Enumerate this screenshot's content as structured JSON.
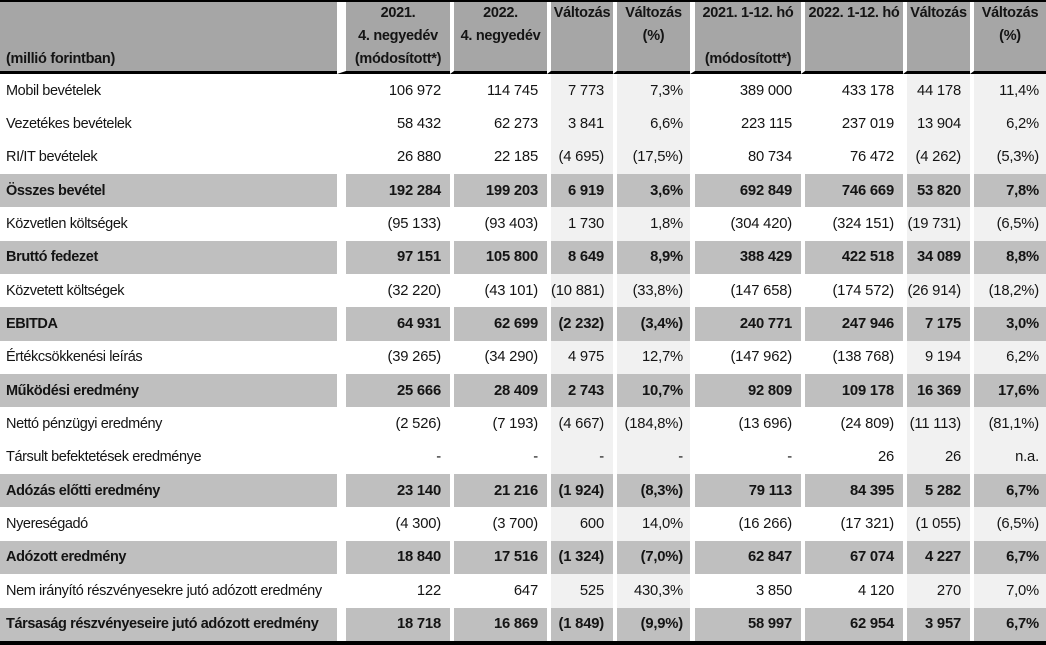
{
  "title": "Eredménykimutatás táblázat",
  "unit_label": "(millió forintban)",
  "header": {
    "columns": [
      {
        "id": "label",
        "lines": [
          "",
          "",
          "(millió forintban)"
        ]
      },
      {
        "id": "q4-2021",
        "lines": [
          "2021.",
          "4. negyedév",
          "(módosított*)"
        ]
      },
      {
        "id": "q4-2022",
        "lines": [
          "2022.",
          "4. negyedév",
          ""
        ]
      },
      {
        "id": "change-q",
        "lines": [
          "Változás",
          "",
          ""
        ]
      },
      {
        "id": "change-q-pct",
        "lines": [
          "Változás",
          "(%)",
          ""
        ]
      },
      {
        "id": "fy-2021",
        "lines": [
          "2021. 1-12. hó",
          "",
          "(módosított*)"
        ]
      },
      {
        "id": "fy-2022",
        "lines": [
          "2022. 1-12. hó",
          "",
          ""
        ]
      },
      {
        "id": "change-fy",
        "lines": [
          "Változás",
          "",
          ""
        ]
      },
      {
        "id": "change-fy-pct",
        "lines": [
          "Változás",
          "(%)",
          ""
        ]
      }
    ]
  },
  "rows": [
    {
      "type": "blank"
    },
    {
      "type": "data",
      "label": "Mobil bevételek",
      "values": [
        "106 972",
        "114 745",
        "7 773",
        "7,3%",
        "389 000",
        "433 178",
        "44 178",
        "11,4%"
      ]
    },
    {
      "type": "data",
      "label": "Vezetékes bevételek",
      "values": [
        "58 432",
        "62 273",
        "3 841",
        "6,6%",
        "223 115",
        "237 019",
        "13 904",
        "6,2%"
      ]
    },
    {
      "type": "data",
      "label": "RI/IT bevételek",
      "values": [
        "26 880",
        "22 185",
        "(4 695)",
        "(17,5%)",
        "80 734",
        "76 472",
        "(4 262)",
        "(5,3%)"
      ]
    },
    {
      "type": "subtotal",
      "label": "Összes bevétel",
      "values": [
        "192 284",
        "199 203",
        "6 919",
        "3,6%",
        "692 849",
        "746 669",
        "53 820",
        "7,8%"
      ]
    },
    {
      "type": "blank"
    },
    {
      "type": "data",
      "label": "Közvetlen költségek",
      "values": [
        "(95 133)",
        "(93 403)",
        "1 730",
        "1,8%",
        "(304 420)",
        "(324 151)",
        "(19 731)",
        "(6,5%)"
      ]
    },
    {
      "type": "subtotal",
      "label": "Bruttó fedezet",
      "values": [
        "97 151",
        "105 800",
        "8 649",
        "8,9%",
        "388 429",
        "422 518",
        "34 089",
        "8,8%"
      ]
    },
    {
      "type": "blank"
    },
    {
      "type": "data",
      "label": "Közvetett költségek",
      "values": [
        "(32 220)",
        "(43 101)",
        "(10 881)",
        "(33,8%)",
        "(147 658)",
        "(174 572)",
        "(26 914)",
        "(18,2%)"
      ]
    },
    {
      "type": "subtotal",
      "label": "EBITDA",
      "values": [
        "64 931",
        "62 699",
        "(2 232)",
        "(3,4%)",
        "240 771",
        "247 946",
        "7 175",
        "3,0%"
      ]
    },
    {
      "type": "blank"
    },
    {
      "type": "data",
      "label": "Értékcsökkenési leírás",
      "values": [
        "(39 265)",
        "(34 290)",
        "4 975",
        "12,7%",
        "(147 962)",
        "(138 768)",
        "9 194",
        "6,2%"
      ]
    },
    {
      "type": "subtotal",
      "label": "Működési eredmény",
      "values": [
        "25 666",
        "28 409",
        "2 743",
        "10,7%",
        "92 809",
        "109 178",
        "16 369",
        "17,6%"
      ]
    },
    {
      "type": "blank"
    },
    {
      "type": "data",
      "label": "Nettó pénzügyi eredmény",
      "values": [
        "(2 526)",
        "(7 193)",
        "(4 667)",
        "(184,8%)",
        "(13 696)",
        "(24 809)",
        "(11 113)",
        "(81,1%)"
      ]
    },
    {
      "type": "data",
      "label": "Társult befektetések eredménye",
      "values": [
        "-",
        "-",
        "-",
        "-",
        "-",
        "26",
        "26",
        "n.a."
      ]
    },
    {
      "type": "subtotal",
      "label": "Adózás előtti eredmény",
      "values": [
        "23 140",
        "21 216",
        "(1 924)",
        "(8,3%)",
        "79 113",
        "84 395",
        "5 282",
        "6,7%"
      ]
    },
    {
      "type": "blank"
    },
    {
      "type": "data",
      "label": "Nyereségadó",
      "values": [
        "(4 300)",
        "(3 700)",
        "600",
        "14,0%",
        "(16 266)",
        "(17 321)",
        "(1 055)",
        "(6,5%)"
      ]
    },
    {
      "type": "subtotal",
      "label": "Adózott eredmény",
      "values": [
        "18 840",
        "17 516",
        "(1 324)",
        "(7,0%)",
        "62 847",
        "67 074",
        "4 227",
        "6,7%"
      ]
    },
    {
      "type": "blank"
    },
    {
      "type": "data",
      "label": "Nem irányító részvényesekre jutó adózott eredmény",
      "values": [
        "122",
        "647",
        "525",
        "430,3%",
        "3 850",
        "4 120",
        "270",
        "7,0%"
      ]
    },
    {
      "type": "subtotal",
      "label": "Társaság részvényeseire jutó adózott eredmény",
      "values": [
        "18 718",
        "16 869",
        "(1 849)",
        "(9,9%)",
        "58 997",
        "62 954",
        "3 957",
        "6,7%"
      ]
    }
  ],
  "colors": {
    "header_bg": "#a6a6a6",
    "subtotal_bg": "#bfbfbf",
    "change_column_bg": "#f1f1f1",
    "rule": "#000000"
  }
}
